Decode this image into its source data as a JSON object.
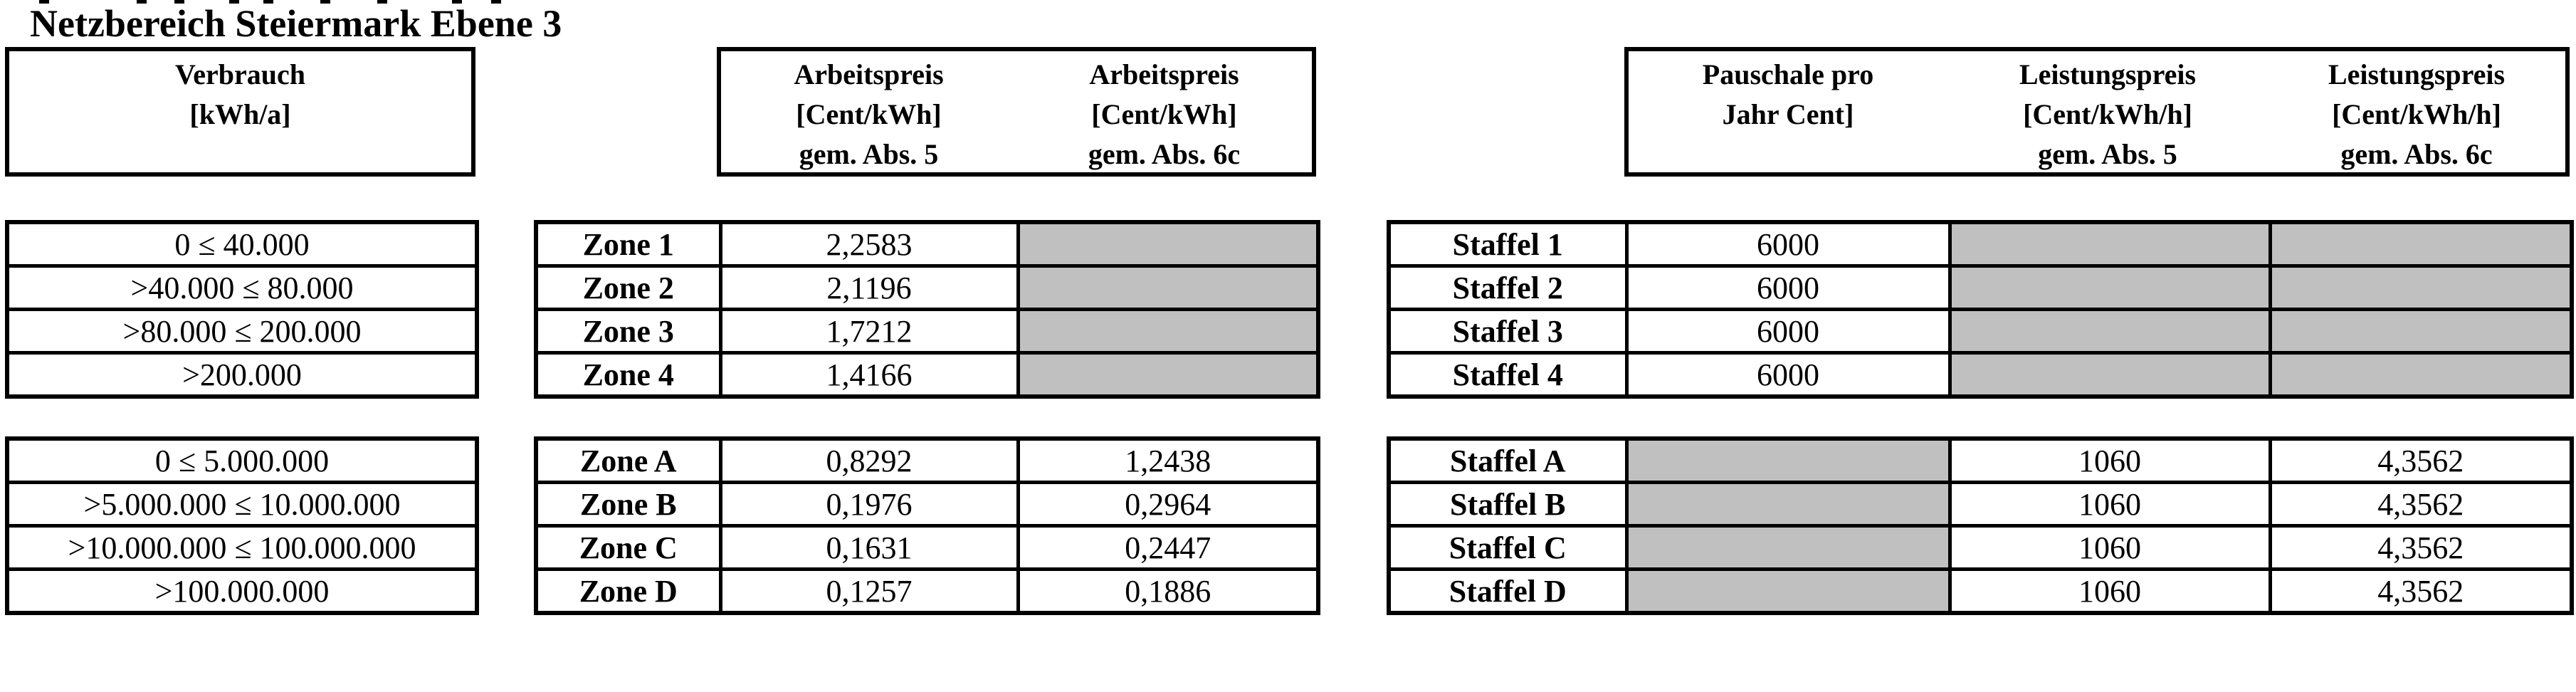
{
  "title": "Netzbereich Steiermark Ebene 3",
  "colors": {
    "background": "#ffffff",
    "grid": "#000000",
    "shaded_cell": "#c0c0c0"
  },
  "headers": {
    "verbrauch": {
      "lines": [
        "Verbrauch",
        "[kWh/a]"
      ]
    },
    "arbeitspreis": [
      {
        "lines": [
          "Arbeitspreis",
          "[Cent/kWh]",
          "gem. Abs. 5"
        ]
      },
      {
        "lines": [
          "Arbeitspreis",
          "[Cent/kWh]",
          "gem. Abs. 6c"
        ]
      }
    ],
    "leistung": [
      {
        "lines": [
          "Pauschale pro",
          "Jahr Cent]",
          ""
        ]
      },
      {
        "lines": [
          "Leistungspreis",
          "[Cent/kWh/h]",
          "gem. Abs. 5"
        ]
      },
      {
        "lines": [
          "Leistungspreis",
          "[Cent/kWh/h]",
          "gem. Abs. 6c"
        ]
      }
    ]
  },
  "block1": {
    "consumption": [
      "0 ≤ 40.000",
      ">40.000 ≤ 80.000",
      ">80.000 ≤ 200.000",
      ">200.000"
    ],
    "zones": [
      {
        "label": "Zone 1",
        "abs5": "2,2583",
        "abs6c": null
      },
      {
        "label": "Zone 2",
        "abs5": "2,1196",
        "abs6c": null
      },
      {
        "label": "Zone 3",
        "abs5": "1,7212",
        "abs6c": null
      },
      {
        "label": "Zone 4",
        "abs5": "1,4166",
        "abs6c": null
      }
    ],
    "staffeln": [
      {
        "label": "Staffel 1",
        "pauschale": "6000",
        "lp_abs5": null,
        "lp_abs6c": null
      },
      {
        "label": "Staffel 2",
        "pauschale": "6000",
        "lp_abs5": null,
        "lp_abs6c": null
      },
      {
        "label": "Staffel 3",
        "pauschale": "6000",
        "lp_abs5": null,
        "lp_abs6c": null
      },
      {
        "label": "Staffel 4",
        "pauschale": "6000",
        "lp_abs5": null,
        "lp_abs6c": null
      }
    ]
  },
  "block2": {
    "consumption": [
      "0 ≤ 5.000.000",
      ">5.000.000 ≤ 10.000.000",
      ">10.000.000 ≤ 100.000.000",
      ">100.000.000"
    ],
    "zones": [
      {
        "label": "Zone A",
        "abs5": "0,8292",
        "abs6c": "1,2438"
      },
      {
        "label": "Zone B",
        "abs5": "0,1976",
        "abs6c": "0,2964"
      },
      {
        "label": "Zone C",
        "abs5": "0,1631",
        "abs6c": "0,2447"
      },
      {
        "label": "Zone D",
        "abs5": "0,1257",
        "abs6c": "0,1886"
      }
    ],
    "staffeln": [
      {
        "label": "Staffel A",
        "pauschale": null,
        "lp_abs5": "1060",
        "lp_abs6c": "4,3562"
      },
      {
        "label": "Staffel B",
        "pauschale": null,
        "lp_abs5": "1060",
        "lp_abs6c": "4,3562"
      },
      {
        "label": "Staffel C",
        "pauschale": null,
        "lp_abs5": "1060",
        "lp_abs6c": "4,3562"
      },
      {
        "label": "Staffel D",
        "pauschale": null,
        "lp_abs5": "1060",
        "lp_abs6c": "4,3562"
      }
    ]
  }
}
